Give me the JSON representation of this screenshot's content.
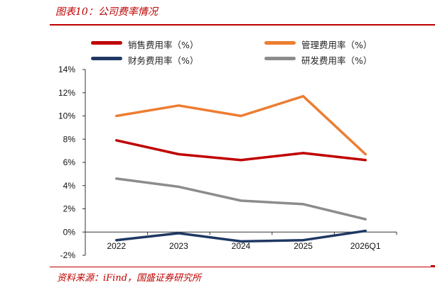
{
  "header": {
    "title": "图表10：公司费率情况"
  },
  "footer": {
    "source": "资料来源：iFind，国盛证券研究所"
  },
  "chart_data": {
    "type": "line",
    "title": "",
    "xlabel": "",
    "ylabel": "",
    "categories": [
      "2022",
      "2023",
      "2024",
      "2025",
      "2026Q1"
    ],
    "y_ticks": [
      "14%",
      "12%",
      "10%",
      "8%",
      "6%",
      "4%",
      "2%",
      "0%",
      "-2%"
    ],
    "ylim": [
      -2,
      14
    ],
    "legend_position": "top",
    "grid": false,
    "series": [
      {
        "name": "销售费用率（%）",
        "color": "#c00000",
        "values": [
          7.9,
          6.7,
          6.2,
          6.8,
          6.2
        ]
      },
      {
        "name": "管理费用率（%）",
        "color": "#ed7d31",
        "values": [
          10.0,
          10.9,
          10.0,
          11.7,
          6.7
        ]
      },
      {
        "name": "财务费用率（%）",
        "color": "#1f3864",
        "values": [
          -0.7,
          -0.1,
          -0.8,
          -0.7,
          0.1
        ]
      },
      {
        "name": "研发费用率（%）",
        "color": "#8c8c8c",
        "values": [
          4.6,
          3.9,
          2.7,
          2.4,
          1.1
        ]
      }
    ]
  }
}
